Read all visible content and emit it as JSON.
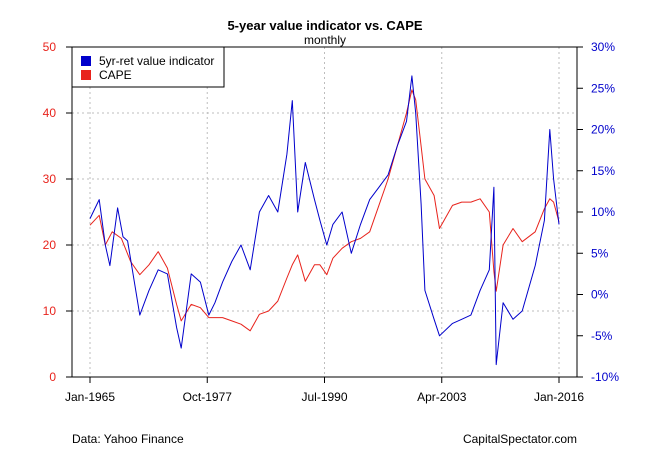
{
  "chart_data": {
    "type": "line",
    "title": "5-year value indicator vs. CAPE",
    "subtitle": "monthly",
    "legend_position": "top-left",
    "grid": true,
    "xlabel": "",
    "x_tick_labels": [
      "Jan-1965",
      "Oct-1977",
      "Jul-1990",
      "Apr-2003",
      "Jan-2016"
    ],
    "x_ticks": [
      "1965-01",
      "1977-10",
      "1990-07",
      "2003-04",
      "2016-01"
    ],
    "xlim": [
      "1965-01",
      "2016-01"
    ],
    "left_axis": {
      "ylim": [
        0,
        50
      ],
      "ticks": [
        0,
        10,
        20,
        30,
        40,
        50
      ],
      "tick_labels": [
        "0",
        "10",
        "20",
        "30",
        "40",
        "50"
      ],
      "color": "#e8231c"
    },
    "right_axis": {
      "ylim": [
        -10,
        30
      ],
      "ticks": [
        -10,
        -5,
        0,
        5,
        10,
        15,
        20,
        25,
        30
      ],
      "tick_labels": [
        "-10%",
        "-5%",
        "0%",
        "5%",
        "10%",
        "15%",
        "20%",
        "25%",
        "30%"
      ],
      "color": "#0000cc"
    },
    "series": [
      {
        "name": "5yr-ret value indicator",
        "axis": "right",
        "color": "#0000cc",
        "x": [
          "1965-01",
          "1966-01",
          "1966-09",
          "1967-03",
          "1968-01",
          "1968-08",
          "1969-02",
          "1970-06",
          "1971-06",
          "1972-06",
          "1973-06",
          "1974-06",
          "1974-12",
          "1976-01",
          "1977-01",
          "1977-12",
          "1978-08",
          "1979-06",
          "1980-06",
          "1981-06",
          "1982-06",
          "1983-06",
          "1984-06",
          "1985-06",
          "1986-06",
          "1987-01",
          "1987-08",
          "1988-06",
          "1989-06",
          "1990-01",
          "1990-10",
          "1991-06",
          "1992-06",
          "1993-06",
          "1994-06",
          "1995-06",
          "1996-06",
          "1997-06",
          "1998-06",
          "1999-06",
          "2000-01",
          "2000-06",
          "2001-01",
          "2001-06",
          "2002-06",
          "2003-01",
          "2004-06",
          "2005-06",
          "2006-06",
          "2007-06",
          "2008-06",
          "2008-12",
          "2009-03",
          "2009-12",
          "2011-01",
          "2012-01",
          "2013-06",
          "2014-06",
          "2015-01",
          "2015-06",
          "2016-01"
        ],
        "values": [
          9.2,
          11.5,
          6.0,
          3.5,
          10.5,
          7.0,
          6.5,
          -2.5,
          0.5,
          3.0,
          2.5,
          -4.0,
          -6.5,
          2.5,
          1.5,
          -2.5,
          -1.0,
          1.5,
          4.0,
          6.0,
          3.0,
          10.0,
          12.0,
          10.0,
          17.0,
          23.5,
          10.0,
          16.0,
          11.5,
          9.0,
          6.0,
          8.5,
          10.0,
          5.0,
          8.5,
          11.5,
          13.0,
          14.5,
          18.0,
          21.0,
          26.5,
          22.0,
          11.0,
          0.5,
          -3.0,
          -5.0,
          -3.5,
          -3.0,
          -2.5,
          0.5,
          3.0,
          13.0,
          -8.5,
          -1.0,
          -3.0,
          -2.0,
          3.5,
          9.0,
          20.0,
          14.0,
          8.5
        ]
      },
      {
        "name": "CAPE",
        "axis": "left",
        "color": "#e8231c",
        "x": [
          "1965-01",
          "1966-01",
          "1966-09",
          "1967-06",
          "1968-06",
          "1969-06",
          "1970-06",
          "1971-06",
          "1972-06",
          "1973-06",
          "1974-06",
          "1974-12",
          "1976-01",
          "1977-01",
          "1977-12",
          "1979-06",
          "1980-06",
          "1981-06",
          "1982-06",
          "1983-06",
          "1984-06",
          "1985-06",
          "1986-06",
          "1987-01",
          "1987-08",
          "1988-06",
          "1989-06",
          "1990-01",
          "1990-10",
          "1991-06",
          "1992-06",
          "1993-06",
          "1994-06",
          "1995-06",
          "1996-06",
          "1997-06",
          "1998-06",
          "1999-06",
          "2000-01",
          "2000-06",
          "2001-01",
          "2001-06",
          "2002-06",
          "2003-01",
          "2004-06",
          "2005-06",
          "2006-06",
          "2007-06",
          "2008-06",
          "2008-12",
          "2009-03",
          "2009-12",
          "2011-01",
          "2012-01",
          "2013-06",
          "2014-06",
          "2015-01",
          "2015-06",
          "2016-01"
        ],
        "values": [
          23.0,
          24.5,
          20.0,
          22.0,
          21.0,
          17.5,
          15.5,
          17.0,
          19.0,
          16.5,
          11.0,
          8.5,
          11.0,
          10.5,
          9.0,
          9.0,
          8.5,
          8.0,
          7.0,
          9.5,
          10.0,
          11.5,
          15.0,
          17.0,
          18.5,
          14.5,
          17.0,
          17.0,
          15.5,
          18.0,
          19.5,
          20.5,
          21.0,
          22.0,
          26.0,
          30.0,
          35.0,
          40.0,
          43.5,
          42.0,
          35.0,
          30.0,
          27.5,
          22.5,
          26.0,
          26.5,
          26.5,
          27.0,
          25.0,
          16.0,
          13.0,
          20.0,
          22.5,
          20.5,
          22.0,
          25.5,
          27.0,
          26.5,
          23.5
        ]
      }
    ],
    "footer_left": "Data: Yahoo Finance",
    "footer_right": "CapitalSpectator.com"
  }
}
